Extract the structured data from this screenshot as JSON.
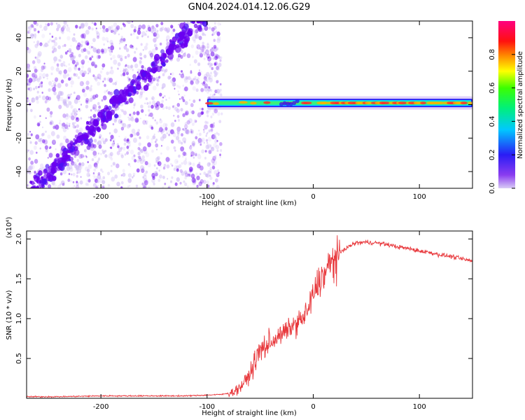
{
  "title": "GN04.2024.014.12.06.G29",
  "colors": {
    "snr_line": "#e8383c",
    "axis": "#000000",
    "scatter_a": "#6a00f0",
    "scatter_b": "#c9b2f5"
  },
  "colorbar": {
    "label": "Normalized spectral amplitude",
    "ticks": [
      "0.0",
      "0.2",
      "0.4",
      "0.6",
      "0.8"
    ],
    "tick_values": [
      0.0,
      0.2,
      0.4,
      0.6,
      0.8
    ],
    "range": [
      0,
      1
    ],
    "colormap": "rainbow (purple-blue-cyan-green-yellow-red-magenta)"
  },
  "chart_data": [
    {
      "type": "heatmap",
      "title": "",
      "xlabel": "Height of straight line (km)",
      "ylabel": "Frequency (Hz)",
      "xlim": [
        -270,
        150
      ],
      "ylim": [
        -50,
        50
      ],
      "x_ticks": [
        "-200",
        "-100",
        "0",
        "100"
      ],
      "x_tick_values": [
        -200,
        -100,
        0,
        100
      ],
      "y_ticks": [
        "-40",
        "-20",
        "0",
        "20",
        "40"
      ],
      "y_tick_values": [
        -40,
        -20,
        0,
        20,
        40
      ],
      "features": {
        "noise_region_x": [
          -270,
          -95
        ],
        "diagonal_trend": {
          "x": [
            -270,
            -100
          ],
          "y": [
            -55,
            55
          ]
        },
        "tone_band": {
          "x_start": -100,
          "x_end": 150,
          "y": 1,
          "half_width_hz": 2.5
        }
      }
    },
    {
      "type": "line",
      "title": "",
      "xlabel": "Height of straight line (km)",
      "ylabel": "SNR (10 * v/v)",
      "multiplier": "(x10⁴)",
      "xlim": [
        -270,
        150
      ],
      "ylim": [
        0,
        2.1
      ],
      "x_ticks": [
        "-200",
        "-100",
        "0",
        "100"
      ],
      "x_tick_values": [
        -200,
        -100,
        0,
        100
      ],
      "y_ticks": [
        "0.5",
        "1.0",
        "1.5",
        "2.0"
      ],
      "y_tick_values": [
        0.5,
        1.0,
        1.5,
        2.0
      ],
      "series": [
        {
          "x": [
            -270,
            -240,
            -200,
            -160,
            -120,
            -100,
            -85,
            -75,
            -68,
            -62,
            -58,
            -55,
            -52,
            -50,
            -45,
            -40,
            -35,
            -30,
            -25,
            -20,
            -15,
            -10,
            -5,
            0,
            5,
            10,
            15,
            20,
            25,
            30,
            40,
            50,
            60,
            70,
            80,
            90,
            100,
            110,
            120,
            130,
            140,
            150
          ],
          "y": [
            0.02,
            0.02,
            0.03,
            0.03,
            0.03,
            0.04,
            0.05,
            0.08,
            0.15,
            0.25,
            0.35,
            0.45,
            0.55,
            0.6,
            0.65,
            0.7,
            0.75,
            0.8,
            0.85,
            0.9,
            0.95,
            1.0,
            1.1,
            1.3,
            1.45,
            1.55,
            1.65,
            1.75,
            1.82,
            1.88,
            1.95,
            1.96,
            1.95,
            1.93,
            1.9,
            1.88,
            1.85,
            1.83,
            1.8,
            1.78,
            1.75,
            1.72
          ]
        }
      ]
    }
  ]
}
